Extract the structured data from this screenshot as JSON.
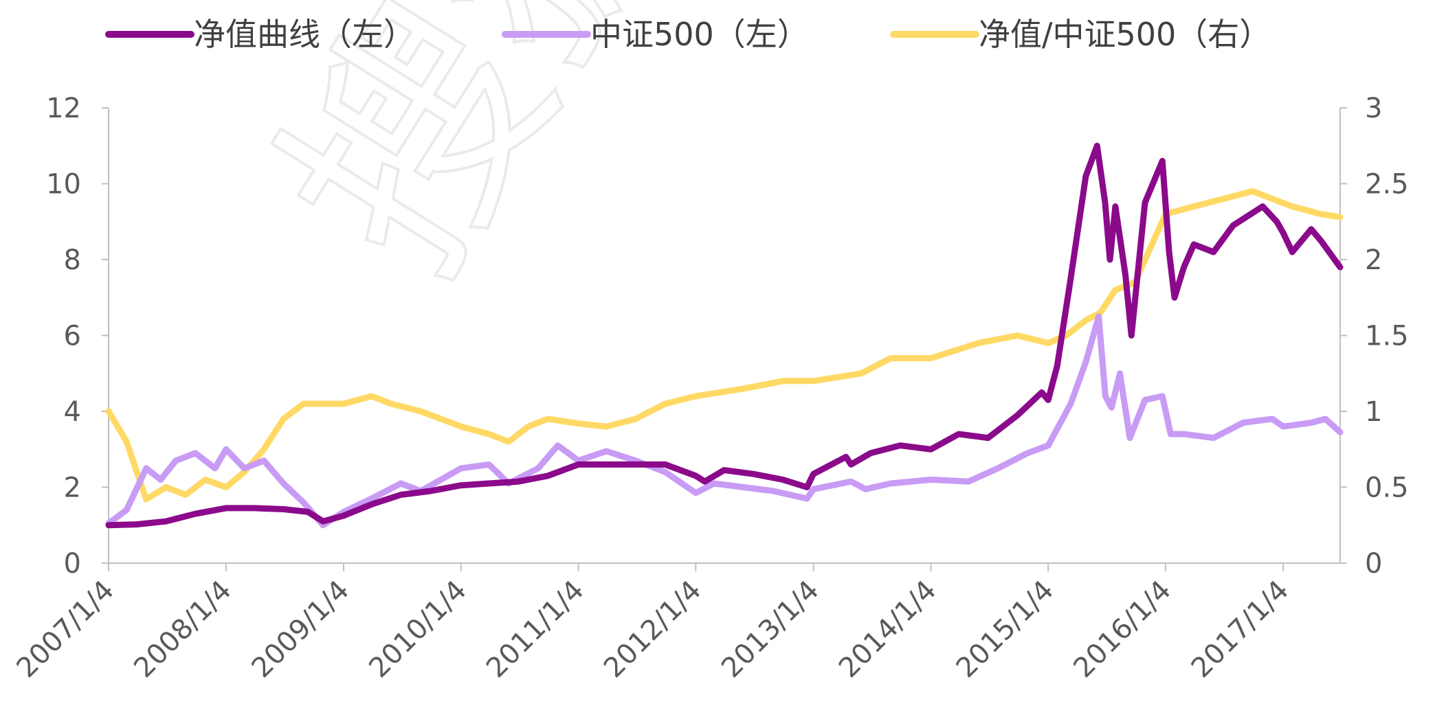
{
  "chart_data": {
    "type": "line",
    "title": "",
    "legend": {
      "position": "top"
    },
    "grid": false,
    "x": {
      "type": "date",
      "range": [
        "2007-01-04",
        "2017-06-30"
      ],
      "ticks": [
        "2007/1/4",
        "2008/1/4",
        "2009/1/4",
        "2010/1/4",
        "2011/1/4",
        "2012/1/4",
        "2013/1/4",
        "2014/1/4",
        "2015/1/4",
        "2016/1/4",
        "2017/1/4"
      ]
    },
    "y_left": {
      "range": [
        0,
        12
      ],
      "ticks": [
        "0",
        "2",
        "4",
        "6",
        "8",
        "10",
        "12"
      ]
    },
    "y_right": {
      "range": [
        0,
        3
      ],
      "ticks": [
        "0",
        "0.5",
        "1",
        "1.5",
        "2",
        "2.5",
        "3"
      ]
    },
    "series": [
      {
        "name": "净值曲线（左）",
        "axis": "left",
        "color": "#8B0A8B",
        "points": [
          [
            "2007-01-04",
            1.0
          ],
          [
            "2007-04-01",
            1.02
          ],
          [
            "2007-07-01",
            1.1
          ],
          [
            "2007-10-01",
            1.3
          ],
          [
            "2008-01-04",
            1.45
          ],
          [
            "2008-04-01",
            1.45
          ],
          [
            "2008-07-01",
            1.42
          ],
          [
            "2008-09-15",
            1.35
          ],
          [
            "2008-11-01",
            1.1
          ],
          [
            "2009-01-04",
            1.25
          ],
          [
            "2009-04-01",
            1.55
          ],
          [
            "2009-07-01",
            1.8
          ],
          [
            "2009-10-01",
            1.9
          ],
          [
            "2010-01-04",
            2.05
          ],
          [
            "2010-04-01",
            2.1
          ],
          [
            "2010-07-01",
            2.15
          ],
          [
            "2010-10-01",
            2.3
          ],
          [
            "2011-01-04",
            2.6
          ],
          [
            "2011-04-01",
            2.6
          ],
          [
            "2011-07-01",
            2.6
          ],
          [
            "2011-10-01",
            2.6
          ],
          [
            "2012-01-04",
            2.3
          ],
          [
            "2012-02-01",
            2.15
          ],
          [
            "2012-04-01",
            2.45
          ],
          [
            "2012-07-01",
            2.35
          ],
          [
            "2012-10-01",
            2.2
          ],
          [
            "2012-12-15",
            2.0
          ],
          [
            "2013-01-04",
            2.35
          ],
          [
            "2013-03-01",
            2.6
          ],
          [
            "2013-04-15",
            2.8
          ],
          [
            "2013-05-01",
            2.6
          ],
          [
            "2013-07-01",
            2.9
          ],
          [
            "2013-10-01",
            3.1
          ],
          [
            "2014-01-04",
            3.0
          ],
          [
            "2014-04-01",
            3.4
          ],
          [
            "2014-07-01",
            3.3
          ],
          [
            "2014-10-01",
            3.9
          ],
          [
            "2014-12-15",
            4.5
          ],
          [
            "2015-01-04",
            4.3
          ],
          [
            "2015-02-01",
            5.2
          ],
          [
            "2015-03-15",
            7.5
          ],
          [
            "2015-05-01",
            10.2
          ],
          [
            "2015-06-05",
            11.0
          ],
          [
            "2015-06-30",
            9.5
          ],
          [
            "2015-07-15",
            8.0
          ],
          [
            "2015-08-01",
            9.4
          ],
          [
            "2015-09-01",
            7.6
          ],
          [
            "2015-09-20",
            6.0
          ],
          [
            "2015-11-01",
            9.5
          ],
          [
            "2015-12-25",
            10.6
          ],
          [
            "2016-01-15",
            8.2
          ],
          [
            "2016-02-01",
            7.0
          ],
          [
            "2016-03-01",
            7.8
          ],
          [
            "2016-04-01",
            8.4
          ],
          [
            "2016-06-01",
            8.2
          ],
          [
            "2016-08-01",
            8.9
          ],
          [
            "2016-11-01",
            9.4
          ],
          [
            "2016-12-15",
            9.0
          ],
          [
            "2017-01-04",
            8.7
          ],
          [
            "2017-02-01",
            8.2
          ],
          [
            "2017-04-01",
            8.8
          ],
          [
            "2017-05-01",
            8.5
          ],
          [
            "2017-06-30",
            7.8
          ]
        ]
      },
      {
        "name": "中证500（左）",
        "axis": "left",
        "color": "#C89BF5",
        "points": [
          [
            "2007-01-04",
            1.05
          ],
          [
            "2007-03-01",
            1.4
          ],
          [
            "2007-05-01",
            2.5
          ],
          [
            "2007-06-15",
            2.2
          ],
          [
            "2007-08-01",
            2.7
          ],
          [
            "2007-10-01",
            2.9
          ],
          [
            "2007-12-01",
            2.5
          ],
          [
            "2008-01-04",
            3.0
          ],
          [
            "2008-03-01",
            2.5
          ],
          [
            "2008-05-01",
            2.7
          ],
          [
            "2008-07-01",
            2.1
          ],
          [
            "2008-09-01",
            1.6
          ],
          [
            "2008-11-01",
            1.0
          ],
          [
            "2009-01-04",
            1.35
          ],
          [
            "2009-04-01",
            1.7
          ],
          [
            "2009-07-01",
            2.1
          ],
          [
            "2009-09-01",
            1.9
          ],
          [
            "2010-01-04",
            2.5
          ],
          [
            "2010-04-01",
            2.6
          ],
          [
            "2010-06-01",
            2.1
          ],
          [
            "2010-09-01",
            2.5
          ],
          [
            "2010-11-01",
            3.1
          ],
          [
            "2011-01-04",
            2.7
          ],
          [
            "2011-04-01",
            2.95
          ],
          [
            "2011-07-01",
            2.7
          ],
          [
            "2011-10-01",
            2.4
          ],
          [
            "2012-01-04",
            1.85
          ],
          [
            "2012-03-01",
            2.1
          ],
          [
            "2012-06-01",
            2.0
          ],
          [
            "2012-09-01",
            1.9
          ],
          [
            "2012-12-15",
            1.7
          ],
          [
            "2013-01-04",
            1.95
          ],
          [
            "2013-05-01",
            2.15
          ],
          [
            "2013-06-15",
            1.95
          ],
          [
            "2013-09-01",
            2.1
          ],
          [
            "2014-01-04",
            2.2
          ],
          [
            "2014-05-01",
            2.15
          ],
          [
            "2014-08-01",
            2.5
          ],
          [
            "2014-11-01",
            2.9
          ],
          [
            "2015-01-04",
            3.1
          ],
          [
            "2015-03-15",
            4.2
          ],
          [
            "2015-05-01",
            5.3
          ],
          [
            "2015-06-10",
            6.5
          ],
          [
            "2015-07-01",
            4.4
          ],
          [
            "2015-07-20",
            4.1
          ],
          [
            "2015-08-15",
            5.0
          ],
          [
            "2015-09-15",
            3.3
          ],
          [
            "2015-11-01",
            4.3
          ],
          [
            "2015-12-25",
            4.4
          ],
          [
            "2016-01-20",
            3.4
          ],
          [
            "2016-03-01",
            3.4
          ],
          [
            "2016-06-01",
            3.3
          ],
          [
            "2016-09-01",
            3.7
          ],
          [
            "2016-12-01",
            3.8
          ],
          [
            "2017-01-04",
            3.6
          ],
          [
            "2017-04-01",
            3.7
          ],
          [
            "2017-05-15",
            3.8
          ],
          [
            "2017-06-30",
            3.45
          ]
        ]
      },
      {
        "name": "净值/中证500（右）",
        "axis": "right",
        "color": "#FFD966",
        "points": [
          [
            "2007-01-04",
            1.0
          ],
          [
            "2007-03-01",
            0.8
          ],
          [
            "2007-05-01",
            0.42
          ],
          [
            "2007-07-01",
            0.5
          ],
          [
            "2007-09-01",
            0.45
          ],
          [
            "2007-11-01",
            0.55
          ],
          [
            "2008-01-04",
            0.5
          ],
          [
            "2008-03-01",
            0.6
          ],
          [
            "2008-05-01",
            0.75
          ],
          [
            "2008-07-01",
            0.95
          ],
          [
            "2008-09-01",
            1.05
          ],
          [
            "2008-11-01",
            1.05
          ],
          [
            "2009-01-04",
            1.05
          ],
          [
            "2009-04-01",
            1.1
          ],
          [
            "2009-06-01",
            1.05
          ],
          [
            "2009-09-01",
            1.0
          ],
          [
            "2010-01-04",
            0.9
          ],
          [
            "2010-04-01",
            0.85
          ],
          [
            "2010-06-01",
            0.8
          ],
          [
            "2010-08-01",
            0.9
          ],
          [
            "2010-10-01",
            0.95
          ],
          [
            "2011-01-04",
            0.92
          ],
          [
            "2011-04-01",
            0.9
          ],
          [
            "2011-07-01",
            0.95
          ],
          [
            "2011-10-01",
            1.05
          ],
          [
            "2012-01-04",
            1.1
          ],
          [
            "2012-06-01",
            1.15
          ],
          [
            "2012-10-01",
            1.2
          ],
          [
            "2013-01-04",
            1.2
          ],
          [
            "2013-06-01",
            1.25
          ],
          [
            "2013-09-01",
            1.35
          ],
          [
            "2014-01-04",
            1.35
          ],
          [
            "2014-06-01",
            1.45
          ],
          [
            "2014-10-01",
            1.5
          ],
          [
            "2015-01-04",
            1.45
          ],
          [
            "2015-03-01",
            1.5
          ],
          [
            "2015-05-01",
            1.6
          ],
          [
            "2015-06-15",
            1.65
          ],
          [
            "2015-08-01",
            1.8
          ],
          [
            "2015-10-01",
            1.85
          ],
          [
            "2016-01-04",
            2.3
          ],
          [
            "2016-04-01",
            2.35
          ],
          [
            "2016-07-01",
            2.4
          ],
          [
            "2016-10-01",
            2.45
          ],
          [
            "2016-12-01",
            2.4
          ],
          [
            "2017-02-01",
            2.35
          ],
          [
            "2017-05-01",
            2.3
          ],
          [
            "2017-06-30",
            2.28
          ]
        ]
      }
    ]
  },
  "watermark": {
    "text": "搜狐",
    "color": "#DDDDDD"
  }
}
